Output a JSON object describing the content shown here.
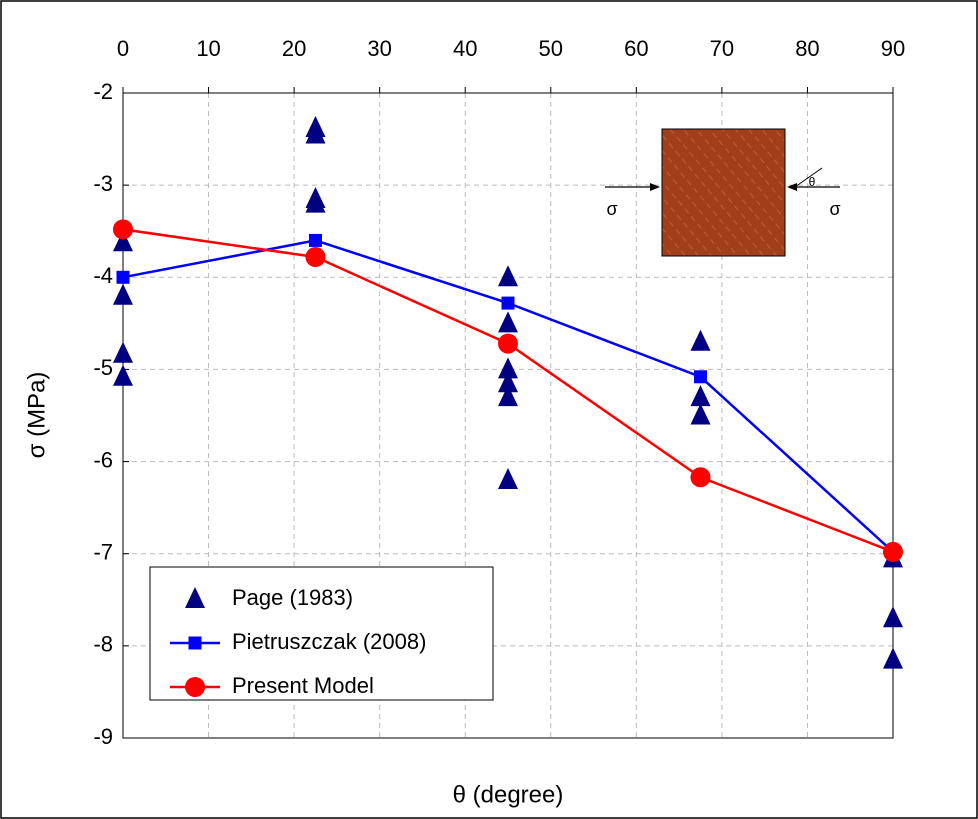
{
  "chart_data": {
    "type": "line",
    "xlabel": "θ (degree)",
    "ylabel": "σ (MPa)",
    "xlim": [
      0,
      90
    ],
    "xticks": [
      0,
      10,
      20,
      30,
      40,
      50,
      60,
      70,
      80,
      90
    ],
    "ylim": [
      -9,
      -2
    ],
    "yticks": [
      -9,
      -8,
      -7,
      -6,
      -5,
      -4,
      -3,
      -2
    ],
    "grid": true,
    "legend": "lower left",
    "annotations": [
      "σ",
      "σ",
      "θ"
    ],
    "series": [
      {
        "name": "Page (1983)",
        "type": "scatter",
        "marker": "triangle",
        "color": "#000080",
        "x": [
          0,
          0,
          0,
          0,
          22.5,
          22.5,
          22.5,
          22.5,
          45,
          45,
          45,
          45,
          45,
          45,
          67.5,
          67.5,
          67.5,
          90,
          90,
          90
        ],
        "values": [
          -3.62,
          -4.2,
          -4.83,
          -5.08,
          -2.38,
          -2.45,
          -3.15,
          -3.2,
          -4.0,
          -4.5,
          -5.0,
          -5.15,
          -5.3,
          -6.2,
          -4.7,
          -5.3,
          -5.5,
          -7.05,
          -7.7,
          -8.15
        ]
      },
      {
        "name": "Pietruszczak (2008)",
        "type": "line",
        "marker": "square",
        "color": "#0000ff",
        "x": [
          0,
          22.5,
          45,
          67.5,
          90
        ],
        "values": [
          -4.0,
          -3.6,
          -4.28,
          -5.08,
          -6.98
        ]
      },
      {
        "name": "Present Model",
        "type": "line",
        "marker": "circle",
        "color": "#ff0000",
        "x": [
          0,
          22.5,
          45,
          67.5,
          90
        ],
        "values": [
          -3.48,
          -3.78,
          -4.72,
          -6.17,
          -6.98
        ]
      }
    ]
  }
}
